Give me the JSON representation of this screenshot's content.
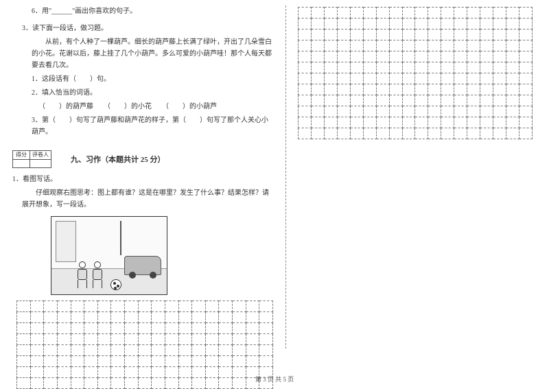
{
  "q6": "6．用\"______\"画出你喜欢的句子。",
  "q3_head": "3．读下面一段话，做习题。",
  "q3_body": "　　从前，有个人种了一棵葫芦。细长的葫芦藤上长满了绿叶，开出了几朵雪白的小花。花谢以后，藤上挂了几个小葫芦。多么可爱的小葫芦哇！那个人每天都要去看几次。",
  "q3_1": "1．这段话有（　　）句。",
  "q3_2": "2．填入恰当的词语。",
  "q3_2_line": "（　　）的葫芦藤　　（　　）的小花　　（　　）的小葫芦",
  "q3_3": "3．第（　　）句写了葫芦藤和葫芦花的样子，第（　　）句写了那个人关心小葫芦。",
  "score_label_1": "得分",
  "score_label_2": "评卷人",
  "section9": "九、习作（本题共计 25 分）",
  "w1": "1．看图写话。",
  "w1_body": "　　仔细观察右图思考：图上都有谁？这是在哪里？发生了什么事？结果怎样？请展开想象，写一段话。",
  "footer": "第 3 页 共 5 页",
  "grid_left": {
    "rows": 8,
    "cols": 19
  },
  "grid_right": {
    "rows": 12,
    "cols": 18
  },
  "colors": {
    "text": "#333333",
    "dash": "#777777",
    "border": "#555555"
  }
}
